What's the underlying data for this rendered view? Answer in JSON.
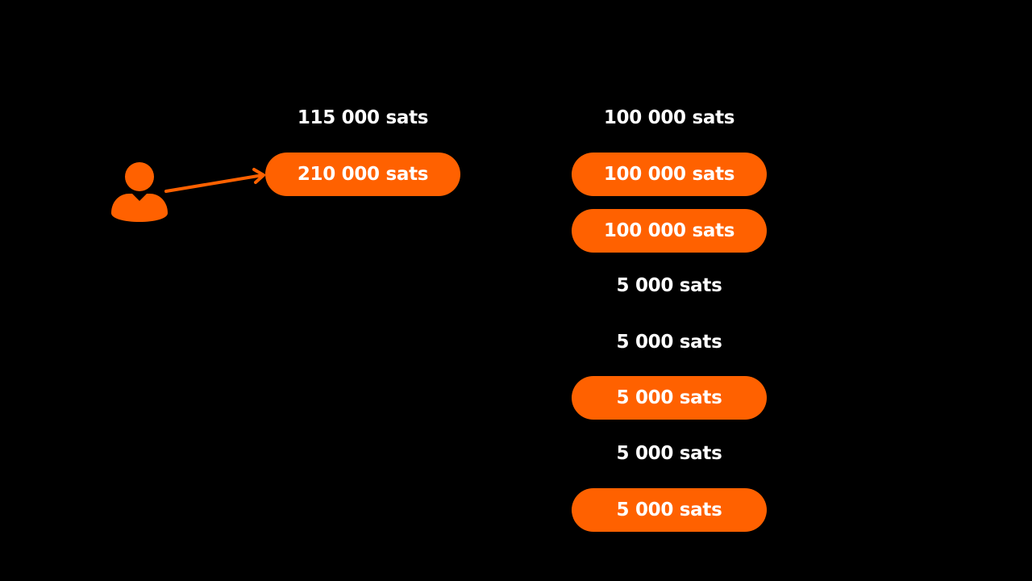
{
  "left_column": {
    "label": "115 000 sats",
    "pill": "210 000 sats"
  },
  "right_column": {
    "items": [
      {
        "text": "100 000 sats",
        "highlighted": false
      },
      {
        "text": "100 000 sats",
        "highlighted": true
      },
      {
        "text": "100 000 sats",
        "highlighted": true
      },
      {
        "text": "5 000 sats",
        "highlighted": false
      },
      {
        "text": "5 000 sats",
        "highlighted": false
      },
      {
        "text": "5 000 sats",
        "highlighted": true
      },
      {
        "text": "5 000 sats",
        "highlighted": false
      },
      {
        "text": "5 000 sats",
        "highlighted": true
      }
    ]
  },
  "icons": {
    "user": "user-icon",
    "arrow": "arrow-icon"
  },
  "colors": {
    "background": "#000000",
    "accent": "#ff6100",
    "text": "#ffffff"
  }
}
